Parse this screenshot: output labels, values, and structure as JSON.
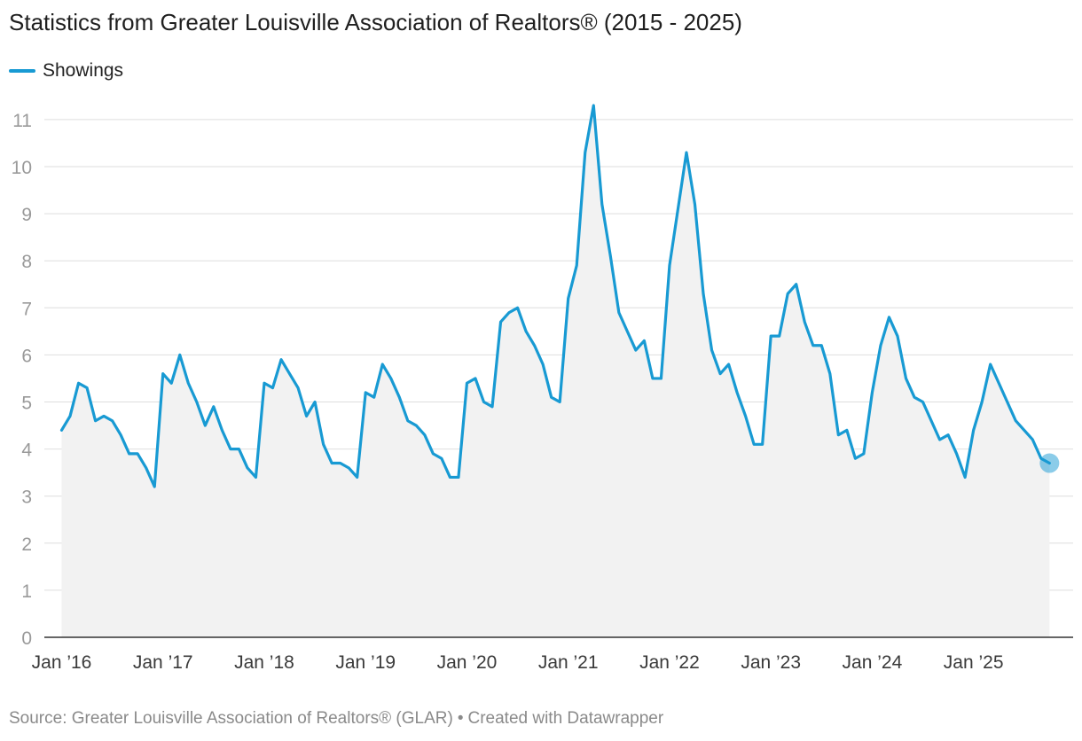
{
  "chart_data": {
    "type": "area",
    "title": "Statistics from Greater Louisville Association of Realtors® (2015 - 2025)",
    "series": [
      {
        "name": "Showings",
        "color": "#189ad3",
        "values": [
          4.4,
          4.7,
          5.4,
          5.3,
          4.6,
          4.7,
          4.6,
          4.3,
          3.9,
          3.9,
          3.6,
          3.2,
          5.6,
          5.4,
          6.0,
          5.4,
          5.0,
          4.5,
          4.9,
          4.4,
          4.0,
          4.0,
          3.6,
          3.4,
          5.4,
          5.3,
          5.9,
          5.6,
          5.3,
          4.7,
          5.0,
          4.1,
          3.7,
          3.7,
          3.6,
          3.4,
          5.2,
          5.1,
          5.8,
          5.5,
          5.1,
          4.6,
          4.5,
          4.3,
          3.9,
          3.8,
          3.4,
          3.4,
          5.4,
          5.5,
          5.0,
          4.9,
          6.7,
          6.9,
          7.0,
          6.5,
          6.2,
          5.8,
          5.1,
          5.0,
          7.2,
          7.9,
          10.3,
          11.3,
          9.2,
          8.1,
          6.9,
          6.5,
          6.1,
          6.3,
          5.5,
          5.5,
          7.9,
          9.1,
          10.3,
          9.2,
          7.3,
          6.1,
          5.6,
          5.8,
          5.2,
          4.7,
          4.1,
          4.1,
          6.4,
          6.4,
          7.3,
          7.5,
          6.7,
          6.2,
          6.2,
          5.6,
          4.3,
          4.4,
          3.8,
          3.9,
          5.2,
          6.2,
          6.8,
          6.4,
          5.5,
          5.1,
          5.0,
          4.6,
          4.2,
          4.3,
          3.9,
          3.4,
          4.4,
          5.0,
          5.8,
          5.4,
          5.0,
          4.6,
          4.4,
          4.2,
          3.8,
          3.7
        ]
      }
    ],
    "x_start": "Jan 2016",
    "x_tick_labels": [
      "Jan ’16",
      "Jan ’17",
      "Jan ’18",
      "Jan ’19",
      "Jan ’20",
      "Jan ’21",
      "Jan ’22",
      "Jan ’23",
      "Jan ’24",
      "Jan ’25"
    ],
    "y_ticks": [
      0,
      1,
      2,
      3,
      4,
      5,
      6,
      7,
      8,
      9,
      10,
      11
    ],
    "ylim": [
      0,
      11.6
    ],
    "grid": true,
    "legend_position": "top-left",
    "xlabel": "",
    "ylabel": ""
  },
  "footer": {
    "source": "Source: Greater Louisville Association of Realtors® (GLAR)",
    "separator": "•",
    "credit": "Created with Datawrapper"
  }
}
